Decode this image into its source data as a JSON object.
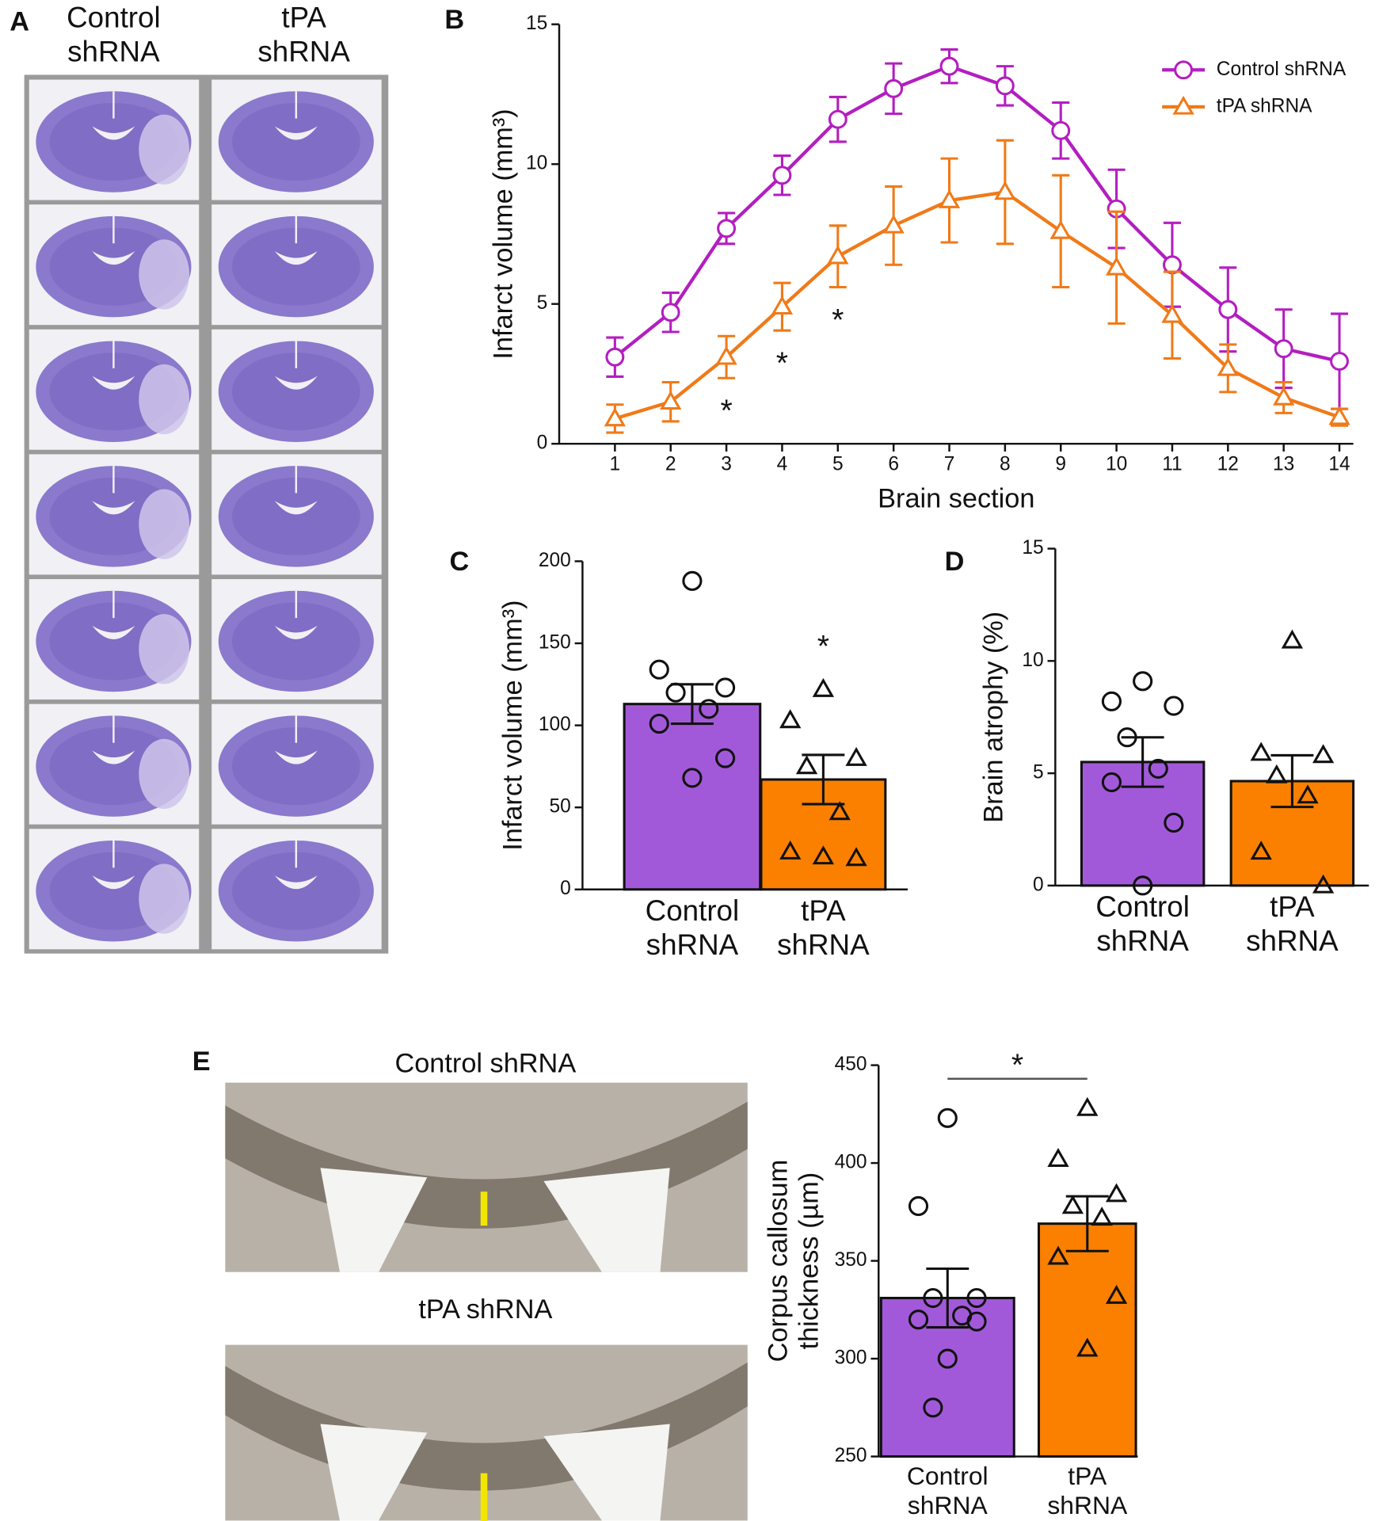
{
  "panel_labels": [
    "A",
    "B",
    "C",
    "D",
    "E"
  ],
  "panel_a": {
    "columns": [
      "Control shRNA",
      "tPA shRNA"
    ]
  },
  "panel_e": {
    "images": [
      "Control shRNA",
      "tPA shRNA"
    ]
  },
  "chart_data": [
    {
      "type": "line",
      "xlabel": "Brain section",
      "ylabel": "Infarct volume (mm³)",
      "x": [
        1,
        2,
        3,
        4,
        5,
        6,
        7,
        8,
        9,
        10,
        11,
        12,
        13,
        14
      ],
      "xlim": [
        0,
        14.25
      ],
      "xticks": [
        1,
        2,
        3,
        4,
        5,
        6,
        7,
        8,
        9,
        10,
        11,
        12,
        13,
        14
      ],
      "ylim": [
        0,
        15
      ],
      "yticks": [
        0,
        5,
        10,
        15
      ],
      "legend": "upper right",
      "series": [
        {
          "name": "Control shRNA",
          "color": "#b31ec0",
          "marker": "circle",
          "values": [
            3.1,
            4.7,
            7.7,
            9.6,
            11.6,
            12.7,
            13.5,
            12.8,
            11.2,
            8.4,
            6.4,
            4.8,
            3.4,
            2.95
          ],
          "errors": [
            0.7,
            0.7,
            0.55,
            0.7,
            0.8,
            0.9,
            0.6,
            0.7,
            1.0,
            1.4,
            1.5,
            1.5,
            1.4,
            1.7
          ]
        },
        {
          "name": "tPA shRNA",
          "color": "#f07a18",
          "marker": "triangle",
          "values": [
            0.9,
            1.5,
            3.1,
            4.9,
            6.7,
            7.8,
            8.7,
            9.0,
            7.6,
            6.3,
            4.6,
            2.7,
            1.65,
            0.95
          ],
          "errors": [
            0.5,
            0.7,
            0.75,
            0.85,
            1.1,
            1.4,
            1.5,
            1.85,
            2.0,
            2.0,
            1.55,
            0.85,
            0.55,
            0.3
          ]
        }
      ],
      "annotations": [
        {
          "x": 3,
          "text": "*"
        },
        {
          "x": 4,
          "text": "*"
        },
        {
          "x": 5,
          "text": "*"
        }
      ]
    },
    {
      "type": "bar",
      "ylabel": "Infarct volume (mm³)",
      "categories": [
        "Control shRNA",
        "tPA shRNA"
      ],
      "values": [
        113,
        67
      ],
      "errors": [
        12,
        15
      ],
      "colors": [
        "#a259d9",
        "#fb8000"
      ],
      "markers": [
        "circle",
        "triangle"
      ],
      "points": [
        [
          188,
          134,
          123,
          120,
          110,
          101,
          80,
          68
        ],
        [
          122,
          103,
          80,
          75,
          47,
          23,
          19,
          20
        ]
      ],
      "ylim": [
        0,
        200
      ],
      "yticks": [
        0,
        50,
        100,
        150,
        200
      ],
      "annotations": [
        {
          "category": 1,
          "text": "*"
        }
      ]
    },
    {
      "type": "bar",
      "ylabel": "Brain atrophy (%)",
      "categories": [
        "Control shRNA",
        "tPA shRNA"
      ],
      "values": [
        5.5,
        4.65
      ],
      "errors": [
        1.1,
        1.15
      ],
      "colors": [
        "#a259d9",
        "#fb8000"
      ],
      "markers": [
        "circle",
        "triangle"
      ],
      "points": [
        [
          9.1,
          8.2,
          8.0,
          6.6,
          5.2,
          4.6,
          2.8,
          0
        ],
        [
          10.9,
          5.9,
          5.8,
          4.9,
          4.0,
          1.5,
          0
        ]
      ],
      "ylim": [
        0,
        15
      ],
      "yticks": [
        0,
        5,
        10,
        15
      ]
    },
    {
      "type": "bar",
      "ylabel": "Corpus callosum thickness (µm)",
      "categories": [
        "Control shRNA",
        "tPA shRNA"
      ],
      "values": [
        331,
        369
      ],
      "errors": [
        15,
        14
      ],
      "colors": [
        "#a259d9",
        "#fb8000"
      ],
      "markers": [
        "circle",
        "triangle"
      ],
      "points": [
        [
          423,
          378,
          331,
          331,
          322,
          320,
          319,
          300,
          275
        ],
        [
          428,
          402,
          384,
          378,
          372,
          352,
          332,
          305
        ]
      ],
      "ylim": [
        250,
        450
      ],
      "yticks": [
        250,
        300,
        350,
        400,
        450
      ],
      "annotations": [
        {
          "text": "*"
        }
      ]
    }
  ]
}
